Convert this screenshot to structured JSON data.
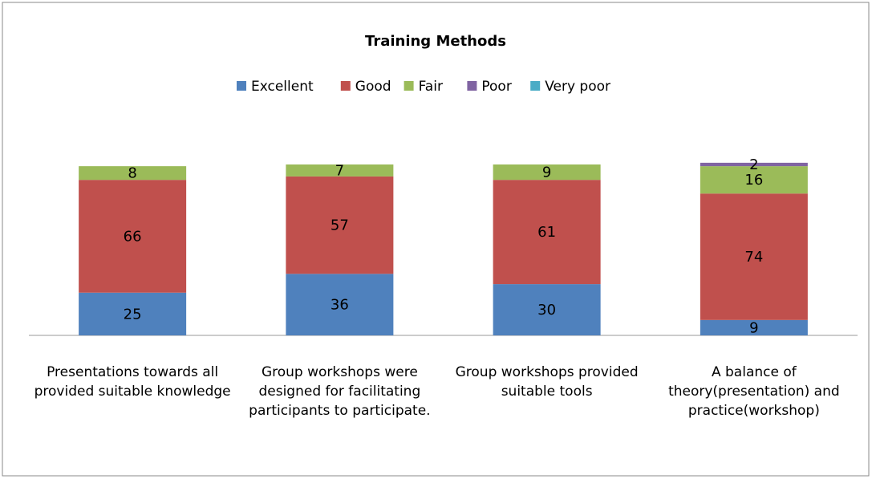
{
  "chart_data": {
    "type": "stacked_bar",
    "title": "Training Methods",
    "categories": [
      "Presentations towards all provided suitable knowledge",
      "Group workshops were designed for facilitating participants to participate.",
      "Group workshops provided suitable tools",
      "A balance of theory(presentation) and practice(workshop)"
    ],
    "series": [
      {
        "name": "Excellent",
        "color": "#4f81bd",
        "values": [
          25,
          36,
          30,
          9
        ]
      },
      {
        "name": "Good",
        "color": "#c0504d",
        "values": [
          66,
          57,
          61,
          74
        ]
      },
      {
        "name": "Fair",
        "color": "#9bbb59",
        "values": [
          8,
          7,
          9,
          16
        ]
      },
      {
        "name": "Poor",
        "color": "#8064a2",
        "values": [
          0,
          0,
          0,
          2
        ]
      },
      {
        "name": "Very poor",
        "color": "#4bacc6",
        "values": [
          0,
          0,
          0,
          0
        ]
      }
    ],
    "ylim": [
      0,
      100
    ],
    "legend": "top"
  }
}
